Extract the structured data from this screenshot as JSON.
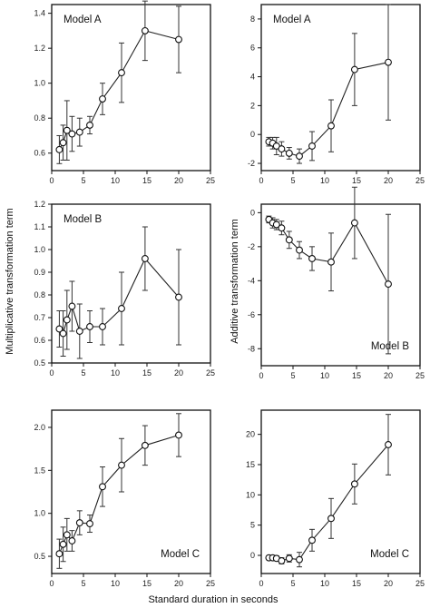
{
  "figure": {
    "xlabel": "Standard duration in seconds",
    "ylabel_left": "Multiplicative transformation term",
    "ylabel_right": "Additive transformation term"
  },
  "chart_data": [
    {
      "type": "line",
      "title": "Model A",
      "title_position": "top-left",
      "xlim": [
        0,
        25
      ],
      "xticks": [
        0,
        5,
        10,
        15,
        20,
        25
      ],
      "ylim": [
        0.5,
        1.45
      ],
      "yticks": [
        0.6,
        0.8,
        1.0,
        1.2,
        1.4
      ],
      "ytick_decimals": 1,
      "x": [
        1.2,
        1.8,
        2.4,
        3.2,
        4.4,
        6.0,
        8.0,
        11.0,
        14.7,
        20.0
      ],
      "y": [
        0.62,
        0.66,
        0.73,
        0.71,
        0.72,
        0.76,
        0.91,
        1.06,
        1.3,
        1.25
      ],
      "err": [
        0.08,
        0.1,
        0.17,
        0.1,
        0.08,
        0.05,
        0.09,
        0.17,
        0.17,
        0.19
      ]
    },
    {
      "type": "line",
      "title": "Model A",
      "title_position": "top-left",
      "xlim": [
        0,
        25
      ],
      "xticks": [
        0,
        5,
        10,
        15,
        20,
        25
      ],
      "ylim": [
        -2.5,
        9
      ],
      "yticks": [
        -2,
        0,
        2,
        4,
        6,
        8
      ],
      "ytick_decimals": 0,
      "x": [
        1.2,
        1.8,
        2.4,
        3.2,
        4.4,
        6.0,
        8.0,
        11.0,
        14.7,
        20.0
      ],
      "y": [
        -0.5,
        -0.6,
        -0.8,
        -1.0,
        -1.3,
        -1.5,
        -0.8,
        0.6,
        4.5,
        5.0
      ],
      "err": [
        0.3,
        0.4,
        0.6,
        0.5,
        0.4,
        0.5,
        1.0,
        1.8,
        2.5,
        4.0
      ]
    },
    {
      "type": "line",
      "title": "Model B",
      "title_position": "top-left",
      "xlim": [
        0,
        25
      ],
      "xticks": [
        0,
        5,
        10,
        15,
        20,
        25
      ],
      "ylim": [
        0.5,
        1.2
      ],
      "yticks": [
        0.5,
        0.6,
        0.7,
        0.8,
        0.9,
        1.0,
        1.1,
        1.2
      ],
      "ytick_decimals": 1,
      "x": [
        1.2,
        1.8,
        2.4,
        3.2,
        4.4,
        6.0,
        8.0,
        11.0,
        14.7,
        20.0
      ],
      "y": [
        0.65,
        0.63,
        0.69,
        0.75,
        0.64,
        0.66,
        0.66,
        0.74,
        0.96,
        0.79
      ],
      "err": [
        0.08,
        0.1,
        0.13,
        0.11,
        0.12,
        0.07,
        0.08,
        0.16,
        0.14,
        0.21
      ]
    },
    {
      "type": "line",
      "title": "Model B",
      "title_position": "bottom-right",
      "xlim": [
        0,
        25
      ],
      "xticks": [
        0,
        5,
        10,
        15,
        20,
        25
      ],
      "ylim": [
        -9,
        0.5
      ],
      "yticks": [
        0,
        -2,
        -4,
        -6,
        -8
      ],
      "ytick_decimals": 0,
      "x": [
        1.2,
        1.8,
        2.4,
        3.2,
        4.4,
        6.0,
        8.0,
        11.0,
        14.7,
        20.0
      ],
      "y": [
        -0.4,
        -0.6,
        -0.7,
        -0.9,
        -1.6,
        -2.2,
        -2.7,
        -2.9,
        -0.6,
        -4.2
      ],
      "err": [
        0.2,
        0.3,
        0.3,
        0.4,
        0.5,
        0.5,
        0.7,
        1.7,
        2.1,
        4.1
      ]
    },
    {
      "type": "line",
      "title": "Model C",
      "title_position": "bottom-right",
      "xlim": [
        0,
        25
      ],
      "xticks": [
        0,
        5,
        10,
        15,
        20,
        25
      ],
      "ylim": [
        0.3,
        2.2
      ],
      "yticks": [
        0.5,
        1.0,
        1.5,
        2.0
      ],
      "ytick_decimals": 1,
      "x": [
        1.2,
        1.8,
        2.4,
        3.2,
        4.4,
        6.0,
        8.0,
        11.0,
        14.7,
        20.0
      ],
      "y": [
        0.53,
        0.64,
        0.75,
        0.68,
        0.89,
        0.88,
        1.31,
        1.56,
        1.79,
        1.91
      ],
      "err": [
        0.17,
        0.2,
        0.19,
        0.12,
        0.14,
        0.1,
        0.23,
        0.31,
        0.23,
        0.25
      ]
    },
    {
      "type": "line",
      "title": "Model C",
      "title_position": "bottom-right",
      "xlim": [
        0,
        25
      ],
      "xticks": [
        0,
        5,
        10,
        15,
        20,
        25
      ],
      "ylim": [
        -3,
        24
      ],
      "yticks": [
        0,
        5,
        10,
        15,
        20
      ],
      "ytick_decimals": 0,
      "x": [
        1.2,
        1.8,
        2.4,
        3.2,
        4.4,
        6.0,
        8.0,
        11.0,
        14.7,
        20.0
      ],
      "y": [
        -0.4,
        -0.4,
        -0.5,
        -0.9,
        -0.5,
        -0.7,
        2.5,
        6.1,
        11.8,
        18.3
      ],
      "err": [
        0.3,
        0.3,
        0.4,
        0.5,
        0.6,
        1.2,
        1.8,
        3.3,
        3.3,
        5.0
      ]
    }
  ]
}
